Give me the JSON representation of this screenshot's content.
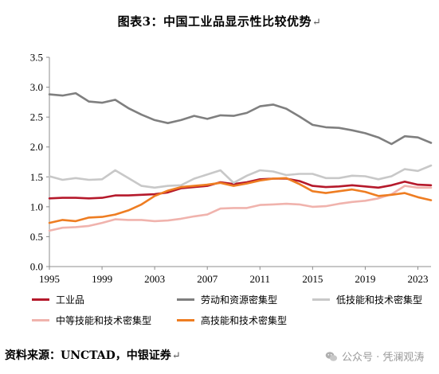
{
  "header": {
    "title": "图表3：中国工业品显示性比较优势",
    "title_mark": "↵"
  },
  "footer": {
    "source": "资料来源：UNCTAD，中银证券",
    "source_mark": "↵",
    "watermark": "公众号 · 凭澜观涛"
  },
  "colors": {
    "industrial": "#b5192b",
    "labor": "#7f7f7f",
    "low_tech": "#c8c8c8",
    "mid_tech": "#f0b3ad",
    "high_tech": "#ee7d22",
    "axis": "#8c8c8c"
  },
  "chart_data": {
    "type": "line",
    "x": [
      1995,
      1996,
      1997,
      1998,
      1999,
      2000,
      2001,
      2002,
      2003,
      2004,
      2005,
      2006,
      2007,
      2008,
      2009,
      2010,
      2011,
      2012,
      2013,
      2014,
      2015,
      2016,
      2017,
      2018,
      2019,
      2020,
      2021,
      2022,
      2023,
      2024
    ],
    "xticks": [
      "1995",
      "1999",
      "2003",
      "2007",
      "2011",
      "2015",
      "2019",
      "2023"
    ],
    "xlim": [
      1995,
      2024
    ],
    "ylim": [
      0,
      3.5
    ],
    "yticks": [
      "0.0",
      "0.5",
      "1.0",
      "1.5",
      "2.0",
      "2.5",
      "3.0",
      "3.5"
    ],
    "grid": false,
    "legend_position": "bottom",
    "series": [
      {
        "name": "工业品",
        "key": "industrial",
        "values": [
          1.14,
          1.15,
          1.15,
          1.14,
          1.15,
          1.19,
          1.19,
          1.2,
          1.21,
          1.24,
          1.31,
          1.33,
          1.35,
          1.41,
          1.38,
          1.41,
          1.46,
          1.47,
          1.47,
          1.43,
          1.35,
          1.33,
          1.34,
          1.36,
          1.34,
          1.32,
          1.36,
          1.42,
          1.37,
          1.36
        ]
      },
      {
        "name": "劳动和资源密集型",
        "key": "labor",
        "values": [
          2.88,
          2.86,
          2.9,
          2.76,
          2.74,
          2.79,
          2.65,
          2.54,
          2.45,
          2.4,
          2.45,
          2.52,
          2.47,
          2.53,
          2.52,
          2.57,
          2.68,
          2.71,
          2.64,
          2.51,
          2.37,
          2.33,
          2.32,
          2.28,
          2.23,
          2.16,
          2.05,
          2.18,
          2.16,
          2.07
        ]
      },
      {
        "name": "低技能和技术密集型",
        "key": "low_tech",
        "values": [
          1.51,
          1.45,
          1.48,
          1.45,
          1.46,
          1.61,
          1.48,
          1.35,
          1.32,
          1.35,
          1.36,
          1.47,
          1.54,
          1.61,
          1.4,
          1.52,
          1.61,
          1.59,
          1.53,
          1.55,
          1.55,
          1.48,
          1.48,
          1.52,
          1.51,
          1.46,
          1.51,
          1.63,
          1.6,
          1.69
        ]
      },
      {
        "name": "中等技能和技术密集型",
        "key": "mid_tech",
        "values": [
          0.6,
          0.65,
          0.66,
          0.68,
          0.73,
          0.79,
          0.78,
          0.78,
          0.76,
          0.77,
          0.8,
          0.84,
          0.87,
          0.97,
          0.98,
          0.98,
          1.03,
          1.04,
          1.05,
          1.04,
          1.0,
          1.01,
          1.05,
          1.08,
          1.1,
          1.14,
          1.21,
          1.35,
          1.32,
          1.32
        ]
      },
      {
        "name": "高技能和技术密集型",
        "key": "high_tech",
        "values": [
          0.73,
          0.78,
          0.76,
          0.82,
          0.83,
          0.87,
          0.94,
          1.04,
          1.18,
          1.27,
          1.33,
          1.35,
          1.37,
          1.4,
          1.35,
          1.39,
          1.44,
          1.47,
          1.48,
          1.38,
          1.26,
          1.23,
          1.26,
          1.29,
          1.25,
          1.18,
          1.2,
          1.23,
          1.16,
          1.11
        ]
      }
    ]
  }
}
